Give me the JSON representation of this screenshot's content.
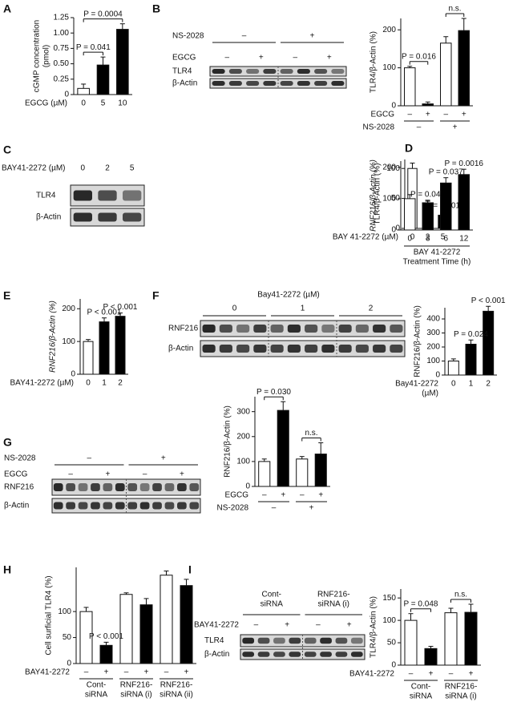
{
  "chart_data": [
    {
      "panel": "A",
      "type": "bar",
      "ylabel": [
        "cGMP concentration",
        "(pmol)"
      ],
      "ylim": [
        0,
        1.25
      ],
      "yticks": [
        0,
        0.25,
        {
          "value": 0.5,
          "label": "0.50"
        },
        0.75,
        {
          "value": 1,
          "label": "1.00"
        },
        1.25
      ],
      "xlabel": [
        "EGCG (µM)"
      ],
      "categories": [
        "0",
        "5",
        "10"
      ],
      "values": [
        0.1,
        0.48,
        1.06
      ],
      "errors": [
        0.07,
        0.13,
        0.09
      ],
      "colors": [
        "#ffffff",
        "#000000",
        "#000000"
      ],
      "annotations": [
        null,
        "P = 0.041",
        "P = 0.0004"
      ]
    },
    {
      "panel": "B",
      "type": "bar",
      "ylabel": [
        "TLR4/β-Actin (%)"
      ],
      "ylim": [
        0,
        230
      ],
      "yticks": [
        0,
        100,
        200
      ],
      "xlabel": [
        "EGCG"
      ],
      "categories": [
        "–",
        "+",
        "–",
        "+"
      ],
      "group_label": "NS-2028",
      "groups": [
        [
          "–"
        ],
        [
          "+"
        ]
      ],
      "values": [
        100,
        5,
        165,
        198
      ],
      "errors": [
        4,
        5,
        17,
        32
      ],
      "colors": [
        "#ffffff",
        "#000000",
        "#ffffff",
        "#000000"
      ],
      "annotations": [
        null,
        "P = 0.016",
        null,
        "n.s."
      ]
    },
    {
      "panel": "C",
      "type": "bar",
      "ylabel": [
        "TLR4/β-Actin (%)"
      ],
      "ylim": [
        0,
        115
      ],
      "yticks": [
        0,
        50,
        100
      ],
      "xlabel": [
        "BAY 41-2272 (µM)"
      ],
      "categories": [
        "0",
        "2",
        "5"
      ],
      "values": [
        100,
        41,
        22
      ],
      "errors": [
        9,
        6,
        6
      ],
      "colors": [
        "#ffffff",
        "#000000",
        "#000000"
      ],
      "annotations": [
        null,
        "P = 0.042",
        "P = 0.001"
      ]
    },
    {
      "panel": "D",
      "type": "bar",
      "ylabel": [
        "RNF216/β-Actin (%)"
      ],
      "ylim": [
        0,
        220
      ],
      "yticks": [
        0,
        100,
        200
      ],
      "xlabel": [
        "BAY 41-2272",
        "Treatment Time (h)"
      ],
      "categories": [
        "0",
        "3",
        "6",
        "12"
      ],
      "values": [
        100,
        87,
        150,
        177
      ],
      "errors": [
        13,
        5,
        17,
        17
      ],
      "colors": [
        "#ffffff",
        "#000000",
        "#000000",
        "#000000"
      ],
      "annotations": [
        null,
        null,
        "P = 0.037",
        "P = 0.0016"
      ]
    },
    {
      "panel": "E",
      "type": "bar",
      "ylabel": [
        "RNF216/β-Actin (%)"
      ],
      "ylim": [
        0,
        230
      ],
      "yticks": [
        0,
        100,
        200
      ],
      "xlabel": [
        "BAY41-2272 (µM)"
      ],
      "categories": [
        "0",
        "1",
        "2"
      ],
      "values": [
        100,
        160,
        177
      ],
      "errors": [
        6,
        12,
        10
      ],
      "colors": [
        "#ffffff",
        "#000000",
        "#000000"
      ],
      "annotations": [
        null,
        "P < 0.001",
        "P < 0.001"
      ]
    },
    {
      "panel": "F",
      "type": "bar",
      "ylabel": [
        "RNF216/β-Actin (%)"
      ],
      "ylim": [
        0,
        480
      ],
      "yticks": [
        0,
        100,
        200,
        300,
        400
      ],
      "xlabel": [
        "Bay41-2272",
        "(µM)"
      ],
      "categories": [
        "0",
        "1",
        "2"
      ],
      "values": [
        100,
        220,
        455
      ],
      "errors": [
        15,
        30,
        35
      ],
      "colors": [
        "#ffffff",
        "#000000",
        "#000000"
      ],
      "annotations": [
        null,
        "P = 0.024",
        "P < 0.001"
      ]
    },
    {
      "panel": "G",
      "type": "bar",
      "ylabel": [
        "RNF216/β-Actin (%)"
      ],
      "ylim": [
        0,
        360
      ],
      "yticks": [
        0,
        100,
        200,
        300
      ],
      "xlabel": [
        "EGCG"
      ],
      "categories": [
        "–",
        "+",
        "–",
        "+"
      ],
      "group_label": "NS-2028",
      "groups": [
        [
          "–"
        ],
        [
          "+"
        ]
      ],
      "values": [
        100,
        305,
        110,
        130
      ],
      "errors": [
        10,
        35,
        10,
        45
      ],
      "colors": [
        "#ffffff",
        "#000000",
        "#ffffff",
        "#000000"
      ],
      "annotations": [
        null,
        "P = 0.030",
        null,
        "n.s."
      ]
    },
    {
      "panel": "H",
      "type": "bar",
      "ylabel": [
        "Cell surficial TLR4 (%)"
      ],
      "ylim": [
        0,
        185
      ],
      "yticks": [
        0,
        50,
        100
      ],
      "xlabel": [
        "BAY41-2272"
      ],
      "categories": [
        "–",
        "+",
        "–",
        "+",
        "–",
        "+"
      ],
      "groups": [
        [
          "Cont-",
          "siRNA"
        ],
        [
          "RNF216-",
          "siRNA (i)"
        ],
        [
          "RNF216-",
          "siRNA (ii)"
        ]
      ],
      "values": [
        100,
        35,
        133,
        113,
        170,
        150
      ],
      "errors": [
        8,
        6,
        3,
        12,
        8,
        12
      ],
      "colors": [
        "#ffffff",
        "#000000",
        "#ffffff",
        "#000000",
        "#ffffff",
        "#000000"
      ],
      "annotations": [
        null,
        "P < 0.001",
        null,
        null,
        null,
        null
      ]
    },
    {
      "panel": "I",
      "type": "bar",
      "ylabel": [
        "TLR4/β-Actin (%)"
      ],
      "ylim": [
        0,
        170
      ],
      "yticks": [
        0,
        50,
        100,
        150
      ],
      "xlabel": [
        "BAY41-2272"
      ],
      "categories": [
        "–",
        "+",
        "–",
        "+"
      ],
      "groups": [
        [
          "Cont-",
          "siRNA"
        ],
        [
          "RNF216-",
          "siRNA (i)"
        ]
      ],
      "values": [
        100,
        37,
        117,
        118
      ],
      "errors": [
        15,
        5,
        10,
        18
      ],
      "colors": [
        "#ffffff",
        "#000000",
        "#ffffff",
        "#000000"
      ],
      "annotations": [
        null,
        "P = 0.048",
        null,
        "n.s."
      ]
    }
  ],
  "blots": [
    {
      "group_label": "NS-2028",
      "groups": [
        [
          "–"
        ],
        [
          "+"
        ]
      ],
      "lane_label": "EGCG",
      "lanes": [
        "–",
        "+",
        "–",
        "+"
      ],
      "rows": [
        "TLR4",
        "β-Actin"
      ]
    },
    {
      "lane_label": "BAY41-2272 (µM)",
      "lanes": [
        "0",
        "2",
        "5"
      ],
      "rows": [
        "TLR4",
        "β-Actin"
      ]
    },
    {
      "group_label": "Bay41-2272 (µM)",
      "groups": [
        [
          "0"
        ],
        [
          "1"
        ],
        [
          "2"
        ]
      ],
      "rows": [
        "RNF216",
        "β-Actin"
      ]
    },
    {
      "group_label": "NS-2028",
      "groups": [
        [
          "–"
        ],
        [
          "+"
        ]
      ],
      "lane_label": "EGCG",
      "lanes": [
        "–",
        "+",
        "–",
        "+"
      ],
      "rows": [
        "RNF216",
        "β-Actin"
      ]
    },
    {
      "groups": [
        [
          "Cont-",
          "siRNA"
        ],
        [
          "RNF216-",
          "siRNA (i)"
        ]
      ],
      "lane_label": "BAY41-2272",
      "lanes": [
        "–",
        "+",
        "–",
        "+"
      ],
      "rows": [
        "TLR4",
        "β-Actin"
      ]
    }
  ]
}
